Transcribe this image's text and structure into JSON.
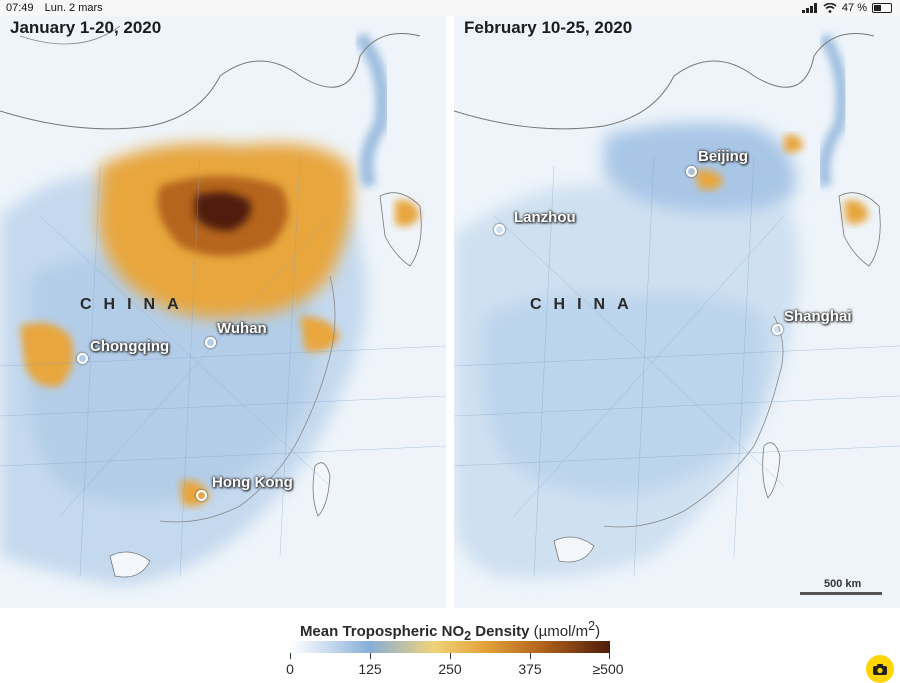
{
  "status_bar": {
    "time": "07:49",
    "date": "Lun. 2 mars",
    "battery_percent": "47 %",
    "icons": [
      "signal-icon",
      "wifi-icon",
      "battery-icon"
    ]
  },
  "panels": [
    {
      "title": "January 1-20, 2020",
      "country_label": "CHINA",
      "cities": [
        "Chongqing",
        "Wuhan",
        "Hong Kong"
      ]
    },
    {
      "title": "February 10-25, 2020",
      "country_label": "CHINA",
      "cities": [
        "Beijing",
        "Lanzhou",
        "Shanghai"
      ]
    }
  ],
  "scale_bar": {
    "label": "500 km"
  },
  "legend": {
    "title_main": "Mean Tropospheric NO",
    "title_sub": "2",
    "title_main2": " Density",
    "unit": "(µmol/m",
    "unit_sup": "2",
    "unit_close": ")",
    "ticks": [
      "0",
      "125",
      "250",
      "375",
      "≥500"
    ],
    "colors": [
      "#ffffff",
      "#86aed8",
      "#f1d27a",
      "#b5651d",
      "#4f1b0a"
    ]
  },
  "colors": {
    "background": "#eef4fa",
    "land_blue": "#c5d9ee",
    "pollution_orange": "#e8a63c",
    "pollution_dark": "#4f1b0a",
    "accent_yellow": "#ffd500"
  }
}
